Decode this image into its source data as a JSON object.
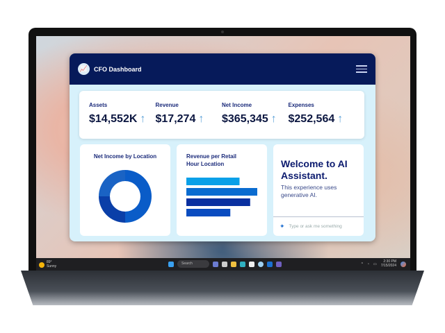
{
  "app": {
    "title": "CFO Dashboard",
    "logo_icon": "chart-growth-icon",
    "menu_icon": "hamburger-icon"
  },
  "kpis": [
    {
      "label": "Assets",
      "value": "$14,552K",
      "trend": "↑"
    },
    {
      "label": "Revenue",
      "value": "$17,274",
      "trend": "↑"
    },
    {
      "label": "Net Income",
      "value": "$365,345",
      "trend": "↑"
    },
    {
      "label": "Expenses",
      "value": "$252,564",
      "trend": "↑"
    }
  ],
  "cards": {
    "donut_title": "Net Income by Location",
    "bars_title": "Revenue per Retail Hour Location"
  },
  "chart_data": [
    {
      "type": "pie",
      "title": "Net Income by Location",
      "donut": true,
      "slices": [
        {
          "value": 50,
          "color": "#0a5cc8"
        },
        {
          "value": 25,
          "color": "#0a3fa8"
        },
        {
          "value": 25,
          "color": "#1a63c4"
        }
      ]
    },
    {
      "type": "bar",
      "orientation": "horizontal",
      "title": "Revenue per Retail Hour Location",
      "values": [
        75,
        100,
        90,
        62
      ],
      "colors": [
        "#0aa0e8",
        "#0a6cd0",
        "#0a30a0",
        "#0a4cc0"
      ]
    }
  ],
  "ai": {
    "heading": "Welcome to AI Assistant.",
    "subtitle": "This experience uses generative AI.",
    "placeholder": "Type or ask me something",
    "icon": "sparkle-icon"
  },
  "taskbar": {
    "weather_temp": "89°",
    "weather_desc": "Sunny",
    "search": "Search",
    "time": "2:30 PM",
    "date": "7/15/2024"
  },
  "colors": {
    "header": "#061a5a",
    "background": "#d7f1fb",
    "accent": "#0a5cc8"
  }
}
